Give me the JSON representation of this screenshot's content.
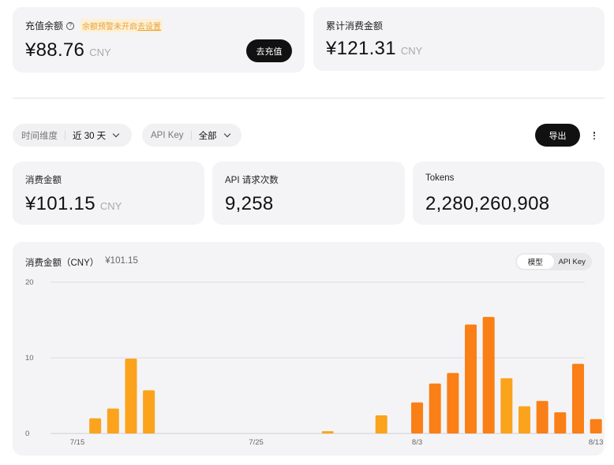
{
  "balance": {
    "label": "充值余额",
    "warning_text": "余额预警未开启",
    "warning_link": "去设置",
    "value": "¥88.76",
    "unit": "CNY",
    "recharge_button": "去充值"
  },
  "total_spend": {
    "label": "累计消费金额",
    "value": "¥121.31",
    "unit": "CNY"
  },
  "filters": {
    "time_label": "时间维度",
    "time_value": "近 30 天",
    "key_label": "API Key",
    "key_value": "全部",
    "export_button": "导出"
  },
  "stats": {
    "spend": {
      "label": "消费金额",
      "value": "¥101.15",
      "unit": "CNY"
    },
    "requests": {
      "label": "API 请求次数",
      "value": "9,258"
    },
    "tokens": {
      "label": "Tokens",
      "value": "2,280,260,908"
    }
  },
  "chart_header": {
    "title": "消费金额（CNY）",
    "total": "¥101.15",
    "toggle_model": "模型",
    "toggle_key": "API Key"
  },
  "chart_data": {
    "type": "bar",
    "title": "消费金额（CNY）",
    "ylim": [
      0,
      20
    ],
    "yticks": [
      0,
      10,
      20
    ],
    "grid": true,
    "x_tick_labels": [
      {
        "index": 0,
        "label": "7/15"
      },
      {
        "index": 10,
        "label": "7/25"
      },
      {
        "index": 19,
        "label": "8/3"
      },
      {
        "index": 29,
        "label": "8/13"
      }
    ],
    "categories": [
      "7/15",
      "7/16",
      "7/17",
      "7/18",
      "7/19",
      "7/20",
      "7/21",
      "7/22",
      "7/23",
      "7/24",
      "7/25",
      "7/26",
      "7/27",
      "7/28",
      "7/29",
      "7/30",
      "7/31",
      "8/1",
      "8/2",
      "8/3",
      "8/4",
      "8/5",
      "8/6",
      "8/7",
      "8/8",
      "8/9",
      "8/10",
      "8/11",
      "8/12",
      "8/13"
    ],
    "series": [
      {
        "color": "#fba31c",
        "values": [
          0,
          2.0,
          3.3,
          9.9,
          5.7,
          0,
          0,
          0,
          0,
          0,
          0,
          0,
          0,
          0,
          0.3,
          0,
          0,
          2.4,
          0,
          0,
          0,
          0,
          0,
          0,
          7.3,
          3.6,
          0,
          0,
          0,
          0
        ]
      },
      {
        "color": "#fa7f16",
        "values": [
          0,
          0,
          0,
          0,
          0,
          0,
          0,
          0,
          0,
          0,
          0,
          0,
          0,
          0,
          0,
          0,
          0,
          0,
          0,
          4.1,
          6.6,
          8.0,
          14.4,
          15.4,
          0,
          0,
          4.3,
          2.8,
          9.2,
          1.9
        ]
      }
    ]
  }
}
